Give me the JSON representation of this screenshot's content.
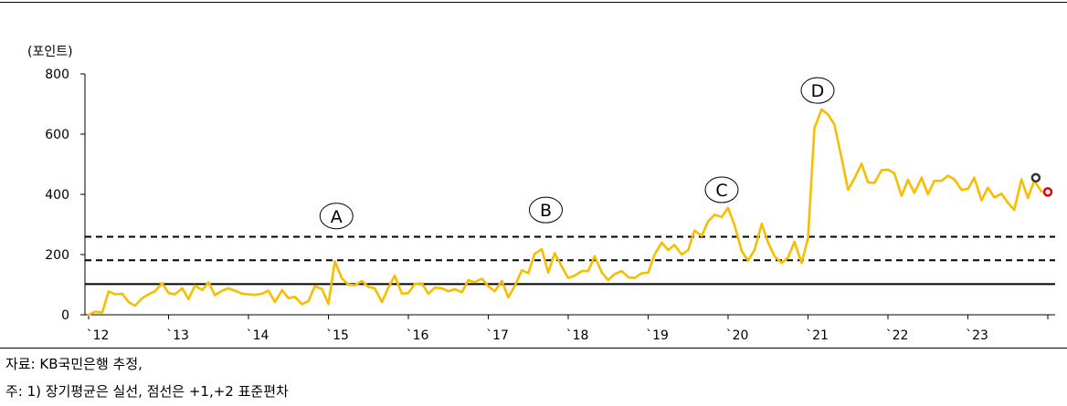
{
  "chart_data": {
    "type": "line",
    "title": "",
    "ylabel": "(포인트)",
    "xlabel": "",
    "ylim": [
      0,
      800
    ],
    "y_ticks": [
      0,
      200,
      400,
      600,
      800
    ],
    "x_range": [
      2012.0,
      2024.0
    ],
    "x_ticks": [
      {
        "label": "`12",
        "year": 2012
      },
      {
        "label": "`13",
        "year": 2013
      },
      {
        "label": "`14",
        "year": 2014
      },
      {
        "label": "`15",
        "year": 2015
      },
      {
        "label": "`16",
        "year": 2016
      },
      {
        "label": "`17",
        "year": 2017
      },
      {
        "label": "`18",
        "year": 2018
      },
      {
        "label": "`19",
        "year": 2019
      },
      {
        "label": "`20",
        "year": 2020
      },
      {
        "label": "`21",
        "year": 2021
      },
      {
        "label": "`22",
        "year": 2022
      },
      {
        "label": "`23",
        "year": 2023
      }
    ],
    "reference_lines": [
      {
        "value": 102,
        "style": "solid"
      },
      {
        "value": 181,
        "style": "dashed"
      },
      {
        "value": 259,
        "style": "dashed"
      }
    ],
    "series": [
      {
        "color": "#F7BE00",
        "points": [
          [
            2012.0,
            0
          ],
          [
            2012.08,
            10
          ],
          [
            2012.17,
            8
          ],
          [
            2012.25,
            78
          ],
          [
            2012.33,
            68
          ],
          [
            2012.42,
            70
          ],
          [
            2012.5,
            42
          ],
          [
            2012.58,
            30
          ],
          [
            2012.67,
            55
          ],
          [
            2012.75,
            68
          ],
          [
            2012.83,
            78
          ],
          [
            2012.92,
            105
          ],
          [
            2013.0,
            72
          ],
          [
            2013.08,
            68
          ],
          [
            2013.17,
            88
          ],
          [
            2013.25,
            52
          ],
          [
            2013.33,
            97
          ],
          [
            2013.42,
            82
          ],
          [
            2013.5,
            108
          ],
          [
            2013.58,
            65
          ],
          [
            2013.67,
            80
          ],
          [
            2013.75,
            88
          ],
          [
            2013.83,
            80
          ],
          [
            2013.92,
            70
          ],
          [
            2014.0,
            68
          ],
          [
            2014.08,
            66
          ],
          [
            2014.17,
            70
          ],
          [
            2014.25,
            80
          ],
          [
            2014.33,
            42
          ],
          [
            2014.42,
            82
          ],
          [
            2014.5,
            55
          ],
          [
            2014.58,
            60
          ],
          [
            2014.67,
            35
          ],
          [
            2014.75,
            45
          ],
          [
            2014.83,
            95
          ],
          [
            2014.92,
            85
          ],
          [
            2015.0,
            36
          ],
          [
            2015.08,
            178
          ],
          [
            2015.17,
            120
          ],
          [
            2015.25,
            100
          ],
          [
            2015.33,
            98
          ],
          [
            2015.42,
            112
          ],
          [
            2015.5,
            92
          ],
          [
            2015.58,
            88
          ],
          [
            2015.67,
            42
          ],
          [
            2015.75,
            90
          ],
          [
            2015.83,
            130
          ],
          [
            2015.92,
            70
          ],
          [
            2016.0,
            72
          ],
          [
            2016.08,
            102
          ],
          [
            2016.17,
            104
          ],
          [
            2016.25,
            70
          ],
          [
            2016.33,
            90
          ],
          [
            2016.42,
            88
          ],
          [
            2016.5,
            78
          ],
          [
            2016.58,
            85
          ],
          [
            2016.67,
            75
          ],
          [
            2016.75,
            115
          ],
          [
            2016.83,
            108
          ],
          [
            2016.92,
            120
          ],
          [
            2017.0,
            95
          ],
          [
            2017.08,
            78
          ],
          [
            2017.17,
            112
          ],
          [
            2017.25,
            58
          ],
          [
            2017.33,
            95
          ],
          [
            2017.42,
            148
          ],
          [
            2017.5,
            138
          ],
          [
            2017.58,
            202
          ],
          [
            2017.67,
            218
          ],
          [
            2017.75,
            140
          ],
          [
            2017.83,
            205
          ],
          [
            2017.92,
            160
          ],
          [
            2018.0,
            122
          ],
          [
            2018.08,
            130
          ],
          [
            2018.17,
            145
          ],
          [
            2018.25,
            145
          ],
          [
            2018.33,
            195
          ],
          [
            2018.42,
            140
          ],
          [
            2018.5,
            115
          ],
          [
            2018.58,
            135
          ],
          [
            2018.67,
            145
          ],
          [
            2018.75,
            125
          ],
          [
            2018.83,
            122
          ],
          [
            2018.92,
            138
          ],
          [
            2019.0,
            140
          ],
          [
            2019.08,
            200
          ],
          [
            2019.17,
            240
          ],
          [
            2019.25,
            215
          ],
          [
            2019.33,
            232
          ],
          [
            2019.42,
            200
          ],
          [
            2019.5,
            215
          ],
          [
            2019.58,
            280
          ],
          [
            2019.67,
            262
          ],
          [
            2019.75,
            310
          ],
          [
            2019.83,
            332
          ],
          [
            2019.92,
            325
          ],
          [
            2020.0,
            355
          ],
          [
            2020.08,
            298
          ],
          [
            2020.17,
            212
          ],
          [
            2020.25,
            180
          ],
          [
            2020.33,
            215
          ],
          [
            2020.42,
            302
          ],
          [
            2020.5,
            240
          ],
          [
            2020.58,
            195
          ],
          [
            2020.67,
            172
          ],
          [
            2020.75,
            190
          ],
          [
            2020.83,
            242
          ],
          [
            2020.92,
            172
          ],
          [
            2021.0,
            255
          ],
          [
            2021.08,
            620
          ],
          [
            2021.17,
            682
          ],
          [
            2021.25,
            665
          ],
          [
            2021.33,
            632
          ],
          [
            2021.42,
            520
          ],
          [
            2021.5,
            415
          ],
          [
            2021.58,
            452
          ],
          [
            2021.67,
            502
          ],
          [
            2021.75,
            440
          ],
          [
            2021.83,
            438
          ],
          [
            2021.92,
            480
          ],
          [
            2022.0,
            482
          ],
          [
            2022.08,
            470
          ],
          [
            2022.17,
            395
          ],
          [
            2022.25,
            448
          ],
          [
            2022.33,
            405
          ],
          [
            2022.42,
            455
          ],
          [
            2022.5,
            400
          ],
          [
            2022.58,
            445
          ],
          [
            2022.67,
            445
          ],
          [
            2022.75,
            462
          ],
          [
            2022.83,
            450
          ],
          [
            2022.92,
            415
          ],
          [
            2023.0,
            418
          ],
          [
            2023.08,
            455
          ],
          [
            2023.17,
            380
          ],
          [
            2023.25,
            422
          ],
          [
            2023.33,
            390
          ],
          [
            2023.42,
            402
          ],
          [
            2023.5,
            372
          ],
          [
            2023.58,
            348
          ],
          [
            2023.67,
            450
          ],
          [
            2023.75,
            388
          ],
          [
            2023.83,
            445
          ],
          [
            2023.92,
            410
          ]
        ]
      }
    ],
    "markers": [
      {
        "x": 2023.85,
        "y": 455,
        "color": "#333333"
      },
      {
        "x": 2024.0,
        "y": 408,
        "color": "#E8000B"
      }
    ],
    "annotations": [
      {
        "label": "A",
        "x": 2015.1,
        "y": 328
      },
      {
        "label": "B",
        "x": 2017.72,
        "y": 348
      },
      {
        "label": "C",
        "x": 2019.92,
        "y": 415
      },
      {
        "label": "D",
        "x": 2021.12,
        "y": 745
      }
    ]
  },
  "notes": {
    "source": "자료: KB국민은행 추정,",
    "footnote": "주: 1) 장기평균은 실선, 점선은 +1,+2 표준편차"
  }
}
